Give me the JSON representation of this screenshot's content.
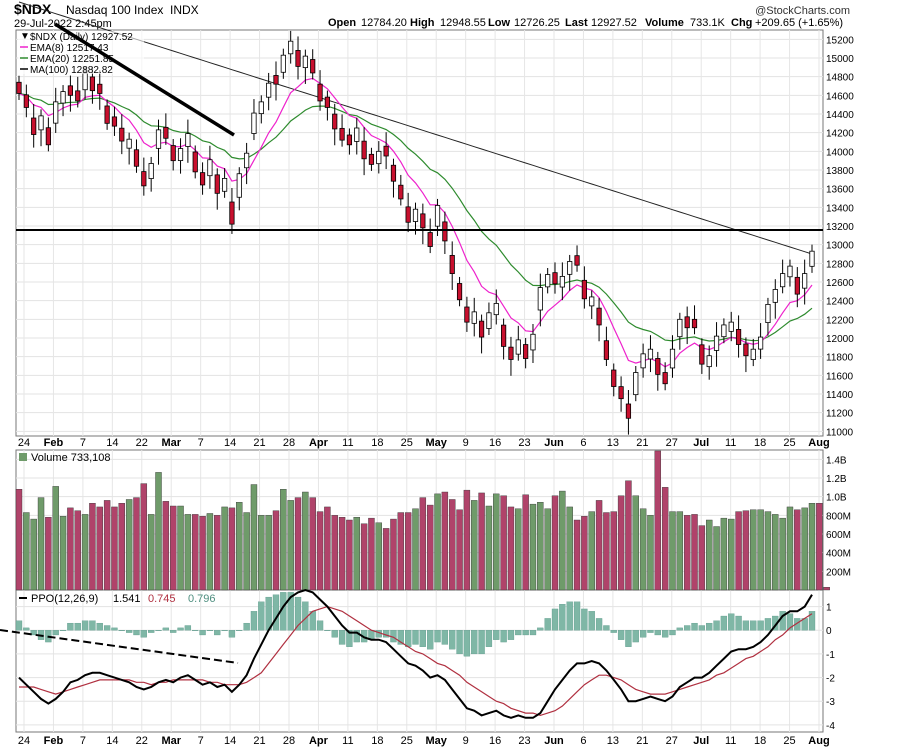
{
  "header": {
    "symbol": "$NDX",
    "name": "Nasdaq 100 Index",
    "exchange": "INDX",
    "timestamp": "29-Jul-2022 2:45pm",
    "brand": "@StockCharts.com",
    "quote": {
      "open_label": "Open",
      "open": "12784.20",
      "high_label": "High",
      "high": "12948.55",
      "low_label": "Low",
      "low": "12726.25",
      "last_label": "Last",
      "last": "12927.52",
      "volume_label": "Volume",
      "volume": "733.1K",
      "chg_label": "Chg",
      "chg": "+209.65 (+1.65%)"
    }
  },
  "legend": {
    "price": "$NDX (Daily) 12927.52",
    "ema8": "EMA(8) 12517.43",
    "ema20": "EMA(20) 12251.85",
    "ma100": "MA(100) 12882.82",
    "volume": "Volume 733,108",
    "ppo_label": "PPO(12,26,9)",
    "ppo_value": "1.541",
    "ppo_signal": "0.745",
    "ppo_hist": "0.796"
  },
  "colors": {
    "up_candle": "#ffffff",
    "down_candle": "#c8102e",
    "up_volume": "#6f9b6a",
    "down_volume": "#b0436a",
    "ema8": "#ee22cc",
    "ema20": "#2e8b2e",
    "ma100": "#222222",
    "ppo_hist": "#7fb7a6",
    "ppo_signal": "#b03040",
    "horizontal_line": "#000000"
  },
  "xaxis_labels": [
    "24",
    "Feb",
    "7",
    "14",
    "22",
    "Mar",
    "7",
    "14",
    "21",
    "28",
    "Apr",
    "11",
    "18",
    "25",
    "May",
    "9",
    "16",
    "23",
    "Jun",
    "6",
    "13",
    "21",
    "27",
    "Jul",
    "11",
    "18",
    "25",
    "Aug"
  ],
  "chart_data": [
    {
      "type": "candlestick",
      "title": "$NDX Nasdaq 100 Index",
      "yticks": [
        11000,
        11200,
        11400,
        11600,
        11800,
        12000,
        12200,
        12400,
        12600,
        12800,
        13000,
        13200,
        13400,
        13600,
        13800,
        14000,
        14200,
        14400,
        14600,
        14800,
        15000,
        15200
      ],
      "ylim": [
        10950,
        15300
      ],
      "horizontal_line": 13000,
      "closes": [
        14620,
        14470,
        14180,
        14380,
        14070,
        14530,
        14640,
        14600,
        14540,
        14840,
        14650,
        14620,
        14300,
        14270,
        14110,
        14130,
        13840,
        13630,
        13870,
        14230,
        14140,
        13900,
        14030,
        14190,
        13780,
        13640,
        13910,
        13550,
        13710,
        13220,
        13760,
        13980,
        14410,
        14530,
        14730,
        14720,
        15030,
        15180,
        14910,
        15020,
        14840,
        14540,
        14470,
        14240,
        14120,
        14070,
        14250,
        13920,
        13860,
        14000,
        13950,
        13680,
        13490,
        13240,
        13380,
        13180,
        12980,
        13420,
        13040,
        12690,
        12410,
        12170,
        12280,
        12010,
        12270,
        12370,
        11910,
        11770,
        11980,
        11780,
        12040,
        12540,
        12680,
        12580,
        12660,
        12820,
        12780,
        12420,
        12440,
        12140,
        11770,
        11480,
        11350,
        11140,
        11630,
        11830,
        11880,
        11610,
        11510,
        11880,
        12200,
        12110,
        12110,
        11720,
        11810,
        12020,
        12140,
        12170,
        11930,
        11810,
        11880,
        12010,
        12360,
        12520,
        12690,
        12770,
        12470,
        12690,
        12930
      ],
      "ema8_last": 12517.43,
      "ema20_last": 12251.85,
      "ma100_last": 12882.82
    },
    {
      "type": "bar",
      "title": "Volume",
      "yticks": [
        "200M",
        "400M",
        "600M",
        "800M",
        "1.0B",
        "1.2B",
        "1.4B"
      ],
      "ylim": [
        0,
        1500
      ],
      "values_millions": [
        1080,
        830,
        760,
        990,
        780,
        1110,
        790,
        880,
        850,
        810,
        930,
        890,
        960,
        890,
        930,
        970,
        990,
        1140,
        810,
        1260,
        950,
        900,
        900,
        810,
        810,
        790,
        820,
        800,
        890,
        880,
        940,
        830,
        1130,
        800,
        800,
        850,
        1080,
        960,
        990,
        1050,
        990,
        840,
        890,
        800,
        780,
        750,
        780,
        710,
        770,
        720,
        660,
        760,
        830,
        830,
        870,
        990,
        910,
        1030,
        1050,
        970,
        860,
        1070,
        960,
        1040,
        900,
        1030,
        1010,
        890,
        870,
        1020,
        920,
        940,
        870,
        1010,
        1060,
        890,
        750,
        790,
        840,
        960,
        830,
        840,
        1010,
        1170,
        1010,
        870,
        800,
        1490,
        1100,
        840,
        840,
        800,
        810,
        690,
        750,
        680,
        770,
        760,
        840,
        850,
        860,
        860,
        840,
        810,
        770,
        890,
        860,
        880,
        930,
        930,
        30
      ],
      "up_days": [
        false,
        true,
        true,
        true,
        false,
        true,
        true,
        false,
        false,
        true,
        false,
        false,
        false,
        false,
        false,
        true,
        false,
        false,
        true,
        true,
        false,
        false,
        true,
        true,
        false,
        false,
        true,
        false,
        true,
        false,
        true,
        true,
        true,
        true,
        true,
        false,
        true,
        true,
        false,
        true,
        false,
        false,
        false,
        false,
        false,
        false,
        true,
        false,
        false,
        true,
        false,
        false,
        false,
        false,
        true,
        false,
        false,
        true,
        false,
        false,
        false,
        false,
        true,
        false,
        true,
        true,
        false,
        false,
        true,
        false,
        true,
        true,
        true,
        false,
        true,
        true,
        false,
        false,
        true,
        false,
        false,
        false,
        false,
        false,
        true,
        true,
        true,
        false,
        false,
        true,
        true,
        false,
        false,
        false,
        true,
        true,
        true,
        true,
        false,
        false,
        true,
        true,
        true,
        true,
        true,
        true,
        false,
        true,
        true
      ]
    },
    {
      "type": "line",
      "title": "PPO(12,26,9)",
      "yticks": [
        -4,
        -3,
        -2,
        -1,
        0,
        1
      ],
      "ylim": [
        -4.3,
        1.7
      ],
      "ppo": [
        -2.0,
        -2.3,
        -2.6,
        -2.9,
        -3.1,
        -2.9,
        -2.6,
        -2.2,
        -2.1,
        -1.9,
        -1.8,
        -1.8,
        -1.9,
        -2.0,
        -2.1,
        -2.2,
        -2.4,
        -2.5,
        -2.4,
        -2.2,
        -2.1,
        -2.2,
        -2.0,
        -1.9,
        -2.1,
        -2.3,
        -2.2,
        -2.4,
        -2.3,
        -2.6,
        -2.3,
        -1.9,
        -1.2,
        -0.6,
        0.0,
        0.5,
        1.0,
        1.4,
        1.6,
        1.7,
        1.6,
        1.3,
        1.0,
        0.6,
        0.2,
        -0.1,
        -0.1,
        -0.3,
        -0.4,
        -0.4,
        -0.5,
        -0.8,
        -1.1,
        -1.4,
        -1.5,
        -1.7,
        -2.0,
        -1.9,
        -2.1,
        -2.5,
        -2.9,
        -3.3,
        -3.4,
        -3.6,
        -3.5,
        -3.4,
        -3.6,
        -3.7,
        -3.6,
        -3.7,
        -3.7,
        -3.5,
        -3.0,
        -2.5,
        -2.1,
        -1.7,
        -1.4,
        -1.4,
        -1.3,
        -1.4,
        -1.7,
        -2.1,
        -2.5,
        -3.0,
        -3.0,
        -2.9,
        -2.8,
        -2.9,
        -3.0,
        -2.8,
        -2.4,
        -2.2,
        -2.0,
        -2.0,
        -1.8,
        -1.5,
        -1.2,
        -0.9,
        -0.8,
        -0.8,
        -0.7,
        -0.5,
        -0.2,
        0.2,
        0.6,
        0.8,
        0.8,
        1.0,
        1.5
      ],
      "signal": [
        -2.4,
        -2.4,
        -2.4,
        -2.5,
        -2.6,
        -2.7,
        -2.6,
        -2.5,
        -2.4,
        -2.3,
        -2.2,
        -2.1,
        -2.1,
        -2.1,
        -2.1,
        -2.1,
        -2.2,
        -2.2,
        -2.3,
        -2.2,
        -2.2,
        -2.1,
        -2.1,
        -2.1,
        -2.1,
        -2.1,
        -2.2,
        -2.2,
        -2.3,
        -2.3,
        -2.3,
        -2.2,
        -2.0,
        -1.8,
        -1.4,
        -1.0,
        -0.6,
        -0.2,
        0.2,
        0.5,
        0.8,
        0.9,
        1.0,
        0.9,
        0.8,
        0.6,
        0.4,
        0.2,
        0.0,
        -0.1,
        -0.2,
        -0.3,
        -0.5,
        -0.7,
        -0.9,
        -1.0,
        -1.2,
        -1.4,
        -1.5,
        -1.7,
        -1.9,
        -2.2,
        -2.4,
        -2.6,
        -2.8,
        -3.0,
        -3.1,
        -3.3,
        -3.4,
        -3.5,
        -3.5,
        -3.6,
        -3.5,
        -3.4,
        -3.2,
        -2.9,
        -2.6,
        -2.3,
        -2.1,
        -1.9,
        -1.9,
        -2.0,
        -2.1,
        -2.3,
        -2.5,
        -2.6,
        -2.7,
        -2.7,
        -2.7,
        -2.6,
        -2.5,
        -2.4,
        -2.3,
        -2.2,
        -2.1,
        -1.9,
        -1.8,
        -1.6,
        -1.4,
        -1.2,
        -1.1,
        -0.9,
        -0.7,
        -0.4,
        -0.2,
        0.1,
        0.3,
        0.5,
        0.7
      ]
    }
  ]
}
